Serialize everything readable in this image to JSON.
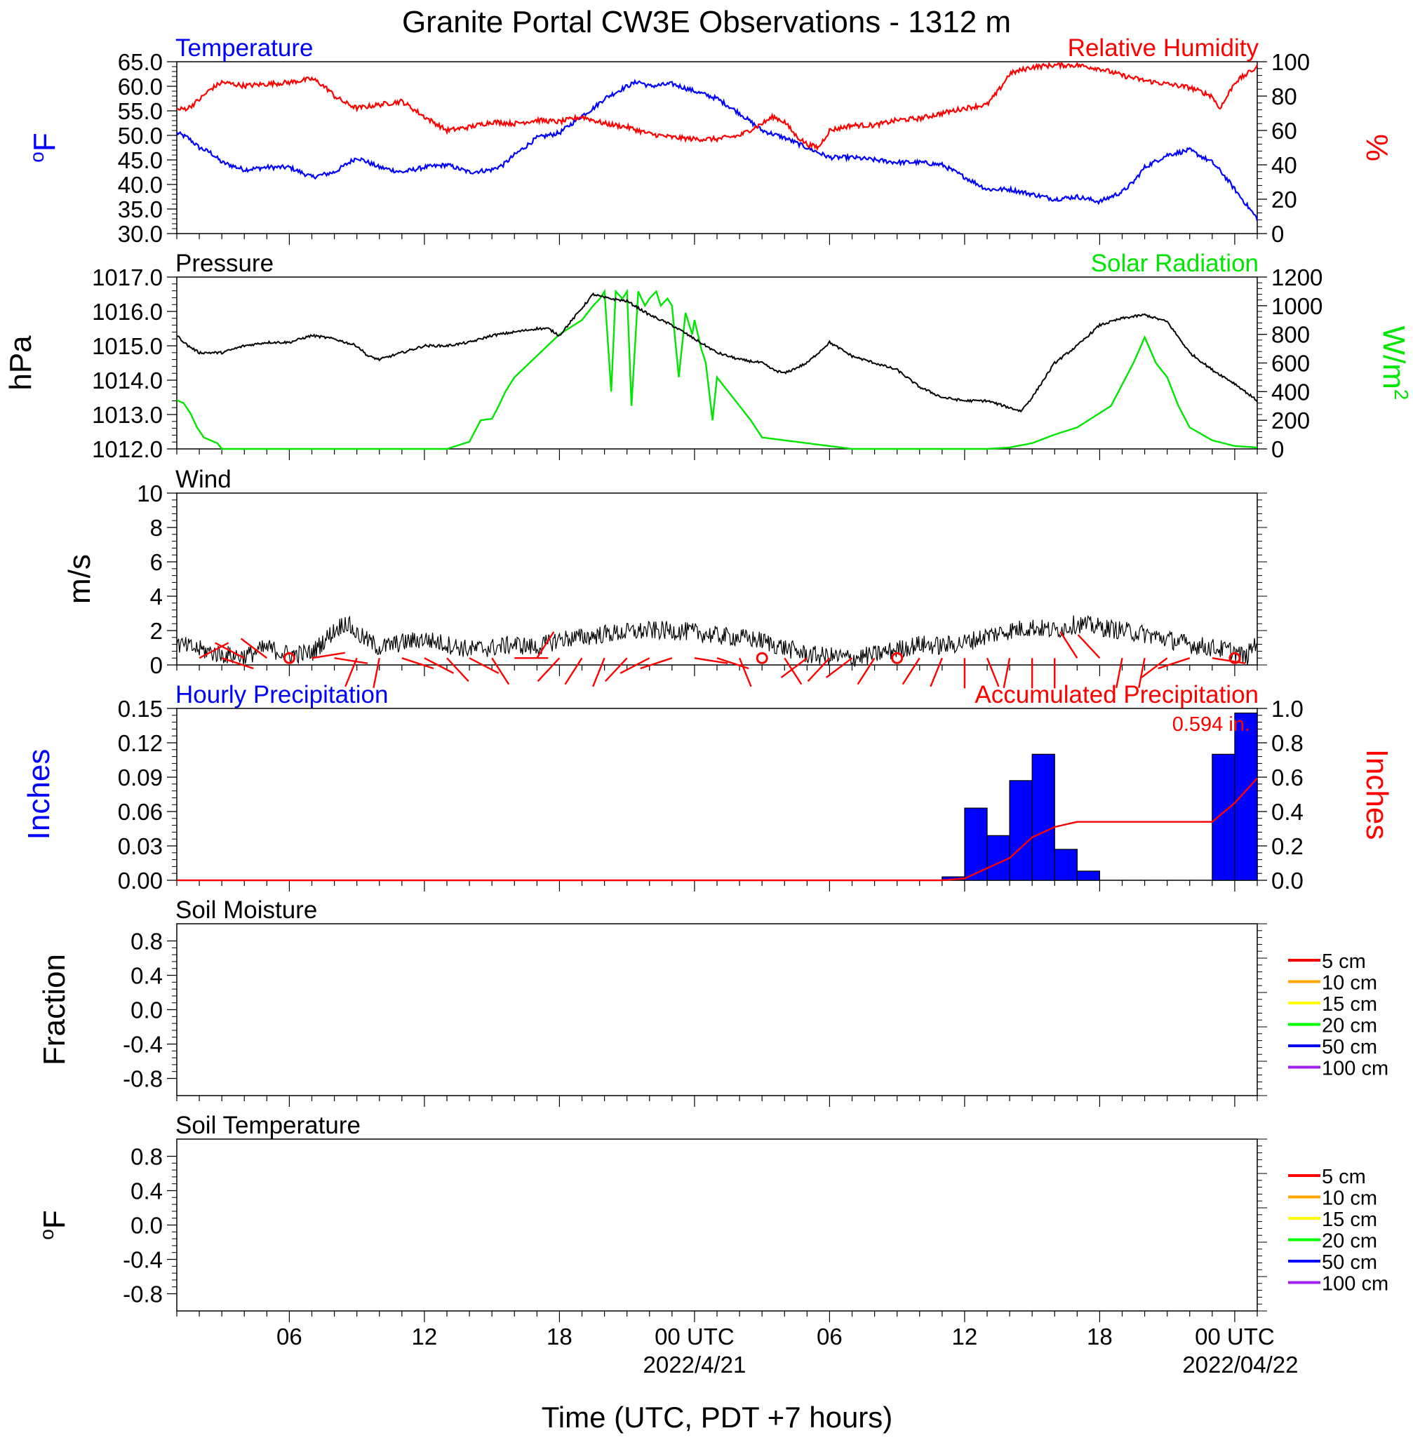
{
  "figure": {
    "title": "Granite Portal CW3E Observations - 1312 m",
    "xlabel": "Time (UTC, PDT +7 hours)",
    "time_ticks": [
      "06",
      "12",
      "18",
      "00 UTC",
      "06",
      "12",
      "18",
      "00 UTC"
    ],
    "date_labels": [
      "2022/4/21",
      "2022/04/22"
    ]
  },
  "chart_data": [
    {
      "type": "line",
      "panel": "temperature-humidity",
      "left_title": "Temperature",
      "right_title": "Relative Humidity",
      "ylabel_left": "oF",
      "ylabel_right": "%",
      "ylim_left": [
        30,
        65
      ],
      "ylim_right": [
        0,
        100
      ],
      "yticks_left": [
        "65.0",
        "60.0",
        "55.0",
        "50.0",
        "45.0",
        "40.0",
        "35.0",
        "30.0"
      ],
      "yticks_right": [
        "100",
        "80",
        "60",
        "40",
        "20",
        "0"
      ],
      "x_unit": "hours since 2022-04-20 01 UTC",
      "series": [
        {
          "name": "Temperature",
          "axis": "left",
          "color": "#0000ff",
          "x": [
            0,
            0.5,
            1,
            1.5,
            2,
            3,
            4,
            5,
            6,
            7,
            8,
            8.5,
            9,
            10,
            11,
            12,
            13,
            14,
            14.5,
            15,
            16,
            17,
            18,
            18.5,
            19,
            20,
            20.5,
            21,
            22,
            23,
            24,
            25,
            26,
            27,
            28,
            29,
            30,
            31,
            32,
            33,
            34,
            35,
            36,
            37,
            38,
            39,
            40,
            41,
            42,
            42.5,
            43,
            44,
            45,
            46,
            46.5,
            47,
            47.5,
            48
          ],
          "y": [
            50.5,
            49.5,
            47.5,
            46.5,
            44.5,
            43,
            43.5,
            43.5,
            41.5,
            42.5,
            45.5,
            44.5,
            43.5,
            42.5,
            43.5,
            44,
            42.5,
            43,
            44,
            46,
            49.5,
            50.5,
            54,
            55.5,
            57.5,
            60,
            61,
            60,
            60.5,
            59,
            57.5,
            54.5,
            51,
            49.5,
            47.5,
            45.5,
            45.5,
            45,
            44.5,
            44.5,
            44,
            41.5,
            39,
            39,
            38,
            37,
            37.5,
            36.5,
            38.5,
            40.5,
            43.5,
            46,
            47,
            44.5,
            42,
            39,
            36,
            33
          ]
        },
        {
          "name": "Relative Humidity",
          "axis": "right",
          "color": "#ff0000",
          "x": [
            0,
            0.5,
            1,
            1.5,
            2,
            3,
            4,
            5,
            6,
            6.3,
            6.8,
            7,
            7.5,
            8,
            9,
            10,
            11,
            12,
            13,
            14,
            15,
            16,
            17,
            18,
            19,
            20,
            21,
            22,
            23,
            24,
            25,
            26,
            26.5,
            27,
            27.5,
            28,
            28.5,
            29,
            30,
            31,
            32,
            33,
            34,
            35,
            36,
            36.5,
            37,
            38,
            39,
            40,
            41,
            42,
            43,
            44,
            45,
            46,
            46.3,
            46.5,
            47,
            48
          ],
          "y": [
            72,
            73,
            78,
            84,
            88,
            86,
            87,
            88,
            90,
            88,
            83,
            80,
            76,
            73,
            75,
            77,
            68,
            60,
            62,
            65,
            64,
            66,
            65,
            68,
            64,
            62,
            58,
            56,
            55,
            55,
            57,
            64,
            68,
            65,
            57,
            52,
            50,
            60,
            63,
            63,
            66,
            67,
            70,
            73,
            75,
            83,
            93,
            97,
            98,
            98,
            96,
            92,
            89,
            87,
            85,
            80,
            73,
            76,
            88,
            97
          ]
        }
      ]
    },
    {
      "type": "line",
      "panel": "pressure-solar",
      "left_title": "Pressure",
      "right_title": "Solar Radiation",
      "ylabel_left": "hPa",
      "ylabel_right": "W/m2",
      "ylim_left": [
        1012,
        1017
      ],
      "ylim_right": [
        0,
        1200
      ],
      "yticks_left": [
        "1017.0",
        "1016.0",
        "1015.0",
        "1014.0",
        "1013.0",
        "1012.0"
      ],
      "yticks_right": [
        "1200",
        "1000",
        "800",
        "600",
        "400",
        "200",
        "0"
      ],
      "x_unit": "hours since 2022-04-20 01 UTC",
      "series": [
        {
          "name": "Pressure",
          "axis": "left",
          "color": "#000000",
          "x": [
            0,
            0.5,
            1,
            2,
            3,
            4,
            5,
            6,
            7,
            8,
            8.5,
            9,
            10,
            11,
            12,
            13,
            14,
            15,
            16,
            16.5,
            17,
            17.5,
            18,
            18.5,
            19,
            20,
            21,
            22,
            23,
            24,
            25,
            26,
            26.5,
            27,
            28,
            29,
            30,
            31,
            32,
            33,
            34,
            35,
            36,
            37,
            37.5,
            38,
            39,
            40,
            41,
            42,
            43,
            44,
            45,
            46,
            47,
            48
          ],
          "y": [
            1015.3,
            1015.0,
            1014.8,
            1014.8,
            1015.0,
            1015.1,
            1015.1,
            1015.3,
            1015.2,
            1015.0,
            1014.7,
            1014.6,
            1014.8,
            1015.0,
            1015.0,
            1015.1,
            1015.3,
            1015.4,
            1015.5,
            1015.5,
            1015.3,
            1015.7,
            1016.1,
            1016.5,
            1016.4,
            1016.3,
            1015.9,
            1015.6,
            1015.2,
            1014.8,
            1014.6,
            1014.5,
            1014.3,
            1014.2,
            1014.5,
            1015.1,
            1014.7,
            1014.5,
            1014.3,
            1013.8,
            1013.5,
            1013.4,
            1013.4,
            1013.2,
            1013.1,
            1013.5,
            1014.5,
            1015.0,
            1015.6,
            1015.8,
            1015.9,
            1015.7,
            1014.8,
            1014.3,
            1013.9,
            1013.4
          ]
        },
        {
          "name": "Solar Radiation",
          "axis": "right",
          "color": "#00e600",
          "x": [
            0,
            0.3,
            0.6,
            0.9,
            1.2,
            1.5,
            1.8,
            2,
            3,
            10,
            12,
            13,
            13.5,
            14,
            14.3,
            14.6,
            15,
            16,
            17,
            18,
            18.5,
            18.8,
            19,
            19.3,
            19.5,
            19.8,
            20,
            20.2,
            20.5,
            20.8,
            21,
            21.3,
            21.5,
            21.8,
            22,
            22.3,
            22.6,
            22.9,
            23,
            23.3,
            23.5,
            23.8,
            24,
            25,
            25.5,
            26,
            30,
            35,
            36,
            37,
            38,
            39,
            40,
            41,
            41.5,
            42,
            42.5,
            43,
            43.5,
            44,
            44.5,
            45,
            46,
            47,
            48
          ],
          "y": [
            340,
            320,
            250,
            150,
            80,
            60,
            40,
            0,
            0,
            0,
            0,
            50,
            200,
            210,
            300,
            400,
            500,
            650,
            800,
            900,
            1000,
            1050,
            1100,
            400,
            1100,
            1050,
            1100,
            300,
            1100,
            1000,
            1050,
            1100,
            1000,
            1050,
            1000,
            500,
            950,
            800,
            900,
            700,
            600,
            200,
            500,
            300,
            200,
            80,
            0,
            0,
            0,
            10,
            40,
            100,
            150,
            250,
            300,
            450,
            600,
            780,
            600,
            500,
            300,
            150,
            60,
            20,
            10
          ]
        }
      ]
    },
    {
      "type": "line",
      "panel": "wind",
      "left_title": "Wind",
      "ylabel_left": "m/s",
      "ylim": [
        0,
        10
      ],
      "yticks_left": [
        "10",
        "8",
        "6",
        "4",
        "2",
        "0"
      ],
      "x_unit": "hours since 2022-04-20 01 UTC",
      "series": [
        {
          "name": "Wind",
          "axis": "left",
          "color": "#000000",
          "x": [
            0,
            1,
            2,
            3,
            4,
            5,
            6,
            7,
            7.5,
            8,
            9,
            10,
            11,
            12,
            13,
            14,
            15,
            16,
            17,
            18,
            19,
            20,
            21,
            22,
            23,
            24,
            25,
            26,
            27,
            28,
            29,
            30,
            31,
            32,
            33,
            34,
            35,
            36,
            37,
            38,
            39,
            40,
            41,
            42,
            43,
            44,
            45,
            46,
            47,
            47.5,
            48
          ],
          "y": [
            1.2,
            0.9,
            0.6,
            0.5,
            1.0,
            0.6,
            0.7,
            2.0,
            2.5,
            1.8,
            1.0,
            1.3,
            1.5,
            1.2,
            0.9,
            1.0,
            1.2,
            1.0,
            1.5,
            1.6,
            1.8,
            1.9,
            2.0,
            2.0,
            1.9,
            1.7,
            1.6,
            1.4,
            1.0,
            0.6,
            0.5,
            0.4,
            0.6,
            0.9,
            1.2,
            1.1,
            1.3,
            1.7,
            2.0,
            2.2,
            2.0,
            2.4,
            2.2,
            2.0,
            1.8,
            1.5,
            1.2,
            1.0,
            0.8,
            0.4,
            1.5
          ]
        }
      ],
      "barbs": {
        "color": "#ff0000",
        "calm_x": [
          5,
          26,
          32,
          47
        ],
        "x": [
          1,
          2,
          3,
          4,
          6,
          7,
          8,
          9,
          10,
          11,
          12,
          13,
          14,
          15,
          16,
          17,
          18,
          19,
          20,
          21,
          22,
          23,
          24,
          25,
          27,
          28,
          29,
          30,
          31,
          33,
          34,
          35,
          36,
          37,
          38,
          39,
          40,
          41,
          42,
          43,
          44,
          45,
          46
        ],
        "direction_deg": [
          60,
          110,
          300,
          310,
          80,
          100,
          200,
          190,
          110,
          120,
          140,
          120,
          150,
          90,
          30,
          220,
          210,
          200,
          220,
          240,
          250,
          100,
          110,
          160,
          150,
          230,
          220,
          230,
          210,
          210,
          200,
          180,
          160,
          190,
          180,
          180,
          330,
          320,
          190,
          190,
          230,
          250,
          100
        ]
      }
    },
    {
      "type": "bar",
      "panel": "precipitation",
      "left_title": "Hourly Precipitation",
      "right_title": "Accumulated Precipitation",
      "ylabel_left": "Inches",
      "ylabel_right": "Inches",
      "ylim_left": [
        0,
        0.15
      ],
      "ylim_right": [
        0,
        1.0
      ],
      "yticks_left": [
        "0.15",
        "0.12",
        "0.09",
        "0.06",
        "0.03",
        "0.00"
      ],
      "yticks_right": [
        "1.0",
        "0.8",
        "0.6",
        "0.4",
        "0.2",
        "0.0"
      ],
      "total_label": "0.594 in.",
      "x_unit": "hours since 2022-04-20 01 UTC",
      "hourly": {
        "color": "#0000ff",
        "x": [
          34,
          35,
          36,
          37,
          38,
          39,
          40,
          46,
          47
        ],
        "values": [
          0.003,
          0.063,
          0.039,
          0.087,
          0.11,
          0.027,
          0.008,
          0.11,
          0.146
        ]
      },
      "accumulated": {
        "color": "#ff0000",
        "x": [
          0,
          34,
          35,
          36,
          37,
          38,
          39,
          40,
          41,
          46,
          47,
          48
        ],
        "y": [
          0,
          0,
          0.01,
          0.07,
          0.13,
          0.25,
          0.31,
          0.34,
          0.34,
          0.34,
          0.45,
          0.594
        ]
      }
    },
    {
      "type": "line",
      "panel": "soil-moisture",
      "left_title": "Soil Moisture",
      "ylabel_left": "Fraction",
      "ylim": [
        -1,
        1
      ],
      "yticks_left": [
        "0.8",
        "0.4",
        "0.0",
        "-0.4",
        "-0.8"
      ],
      "legend": [
        {
          "label": "5 cm",
          "color": "#ff0000"
        },
        {
          "label": "10 cm",
          "color": "#ffa500"
        },
        {
          "label": "15 cm",
          "color": "#ffff00"
        },
        {
          "label": "20 cm",
          "color": "#00ff00"
        },
        {
          "label": "50 cm",
          "color": "#0000ff"
        },
        {
          "label": "100 cm",
          "color": "#a020f0"
        }
      ],
      "series": []
    },
    {
      "type": "line",
      "panel": "soil-temperature",
      "left_title": "Soil Temperature",
      "ylabel_left": "oF",
      "ylim": [
        -1,
        1
      ],
      "yticks_left": [
        "0.8",
        "0.4",
        "0.0",
        "-0.4",
        "-0.8"
      ],
      "legend": [
        {
          "label": "5 cm",
          "color": "#ff0000"
        },
        {
          "label": "10 cm",
          "color": "#ffa500"
        },
        {
          "label": "15 cm",
          "color": "#ffff00"
        },
        {
          "label": "20 cm",
          "color": "#00ff00"
        },
        {
          "label": "50 cm",
          "color": "#0000ff"
        },
        {
          "label": "100 cm",
          "color": "#a020f0"
        }
      ],
      "series": []
    }
  ]
}
